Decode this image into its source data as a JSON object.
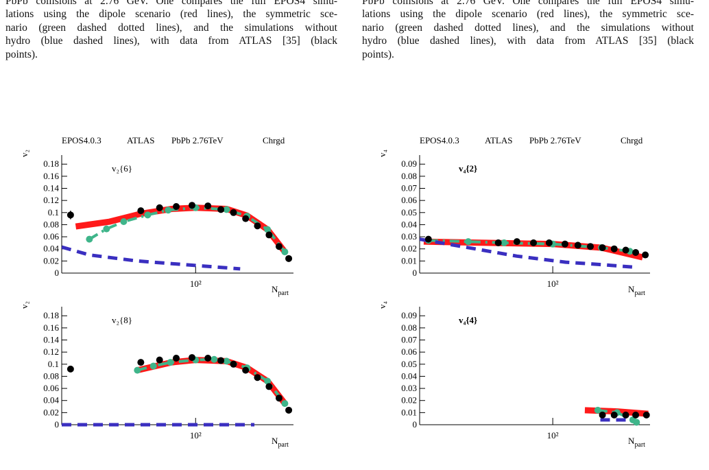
{
  "captions": [
    [
      "PbPb collisions at 2.76 GeV. One compares the full EPOS4 simu-",
      "lations using the dipole scenario (red lines), the symmetric sce-",
      "nario (green dashed dotted lines), and the simulations without",
      "hydro (blue dashed lines), with data from ATLAS [35] (black",
      "points)."
    ],
    [
      "PbPb collisions at 2.76 GeV. One compares the full EPOS4 simu-",
      "lations using the dipole scenario (red lines), the symmetric sce-",
      "nario (green dashed dotted lines), and the simulations without",
      "hydro (blue dashed lines), with data from ATLAS [35] (black",
      "points)."
    ]
  ],
  "chart_data": [
    {
      "type": "line",
      "header": [
        "EPOS4.0.3",
        "ATLAS",
        "PbPb 2.76TeV",
        "Chrgd"
      ],
      "y_label": "v₂",
      "x_label": "N",
      "x_label_sub": "part",
      "annotation": "v₂{6}",
      "annotation_bold": false,
      "log_x": true,
      "xlim": [
        15,
        400
      ],
      "xticks": [
        {
          "value": 100,
          "label": "10²"
        }
      ],
      "ylim": [
        0,
        0.195
      ],
      "yticks": [
        0,
        0.02,
        0.04,
        0.06,
        0.08,
        0.1,
        0.12,
        0.14,
        0.16,
        0.18
      ],
      "series": [
        {
          "type": "line",
          "color": "#ff1a1a",
          "width": 9,
          "dash": "solid",
          "x": [
            18.3,
            29.6,
            45.9,
            71.2,
            100,
            155,
            207,
            277,
            354
          ],
          "values": [
            0.077,
            0.085,
            0.098,
            0.106,
            0.108,
            0.106,
            0.095,
            0.072,
            0.035
          ]
        },
        {
          "type": "line",
          "color": "#3fb58a",
          "width": 4,
          "dash": "dashdot",
          "marker": true,
          "x": [
            22.2,
            28.3,
            36.1,
            50.7,
            67.8,
            100,
            155,
            207,
            277,
            354
          ],
          "values": [
            0.056,
            0.073,
            0.085,
            0.096,
            0.104,
            0.108,
            0.105,
            0.094,
            0.072,
            0.035
          ]
        },
        {
          "type": "line",
          "color": "#3a2fc0",
          "width": 5,
          "dash": "dashed",
          "x": [
            15,
            22.2,
            43.8,
            95.3,
            188
          ],
          "values": [
            0.043,
            0.03,
            0.02,
            0.013,
            0.007
          ]
        },
        {
          "type": "scatter",
          "color": "#000000",
          "x": [
            17,
            46,
            60,
            76,
            95,
            119,
            143,
            171,
            203,
            240,
            283,
            326,
            374
          ],
          "values": [
            0.096,
            0.103,
            0.108,
            0.11,
            0.112,
            0.111,
            0.105,
            0.1,
            0.09,
            0.078,
            0.063,
            0.044,
            0.024
          ],
          "errors": [
            0.007,
            0,
            0,
            0,
            0,
            0,
            0,
            0,
            0,
            0,
            0,
            0,
            0
          ]
        }
      ]
    },
    {
      "type": "line",
      "header": [
        "EPOS4.0.3",
        "ATLAS",
        "PbPb 2.76TeV",
        "Chrgd"
      ],
      "y_label": "v₄",
      "x_label": "N",
      "x_label_sub": "part",
      "annotation": "v₄{2}",
      "annotation_bold": true,
      "log_x": true,
      "xlim": [
        15,
        400
      ],
      "xticks": [
        {
          "value": 100,
          "label": "10²"
        }
      ],
      "ylim": [
        0,
        0.0975
      ],
      "yticks": [
        0,
        0.01,
        0.02,
        0.03,
        0.04,
        0.05,
        0.06,
        0.07,
        0.08,
        0.09
      ],
      "series": [
        {
          "type": "line",
          "color": "#ff1a1a",
          "width": 9,
          "dash": "solid",
          "x": [
            15.9,
            100,
            200,
            360
          ],
          "values": [
            0.026,
            0.024,
            0.021,
            0.013
          ]
        },
        {
          "type": "line",
          "color": "#3fb58a",
          "width": 4,
          "dash": "dashdot",
          "marker": true,
          "x": [
            17,
            30,
            50,
            100,
            200,
            300
          ],
          "values": [
            0.027,
            0.026,
            0.025,
            0.024,
            0.021,
            0.018
          ]
        },
        {
          "type": "line",
          "color": "#3a2fc0",
          "width": 5,
          "dash": "dashed",
          "x": [
            15,
            30,
            60,
            120,
            200,
            310
          ],
          "values": [
            0.028,
            0.021,
            0.014,
            0.009,
            0.007,
            0.005
          ]
        },
        {
          "type": "scatter",
          "color": "#000000",
          "x": [
            17,
            46,
            60,
            76,
            95,
            119,
            143,
            171,
            203,
            240,
            283,
            326,
            374
          ],
          "values": [
            0.028,
            0.025,
            0.026,
            0.025,
            0.025,
            0.024,
            0.023,
            0.022,
            0.021,
            0.02,
            0.019,
            0.017,
            0.015
          ]
        }
      ]
    },
    {
      "type": "line",
      "y_label": "v₂",
      "x_label": "N",
      "x_label_sub": "part",
      "annotation": "v₂{8}",
      "annotation_bold": false,
      "log_x": true,
      "xlim": [
        15,
        400
      ],
      "xticks": [
        {
          "value": 100,
          "label": "10²"
        }
      ],
      "ylim": [
        0,
        0.195
      ],
      "yticks": [
        0,
        0.02,
        0.04,
        0.06,
        0.08,
        0.1,
        0.12,
        0.14,
        0.16,
        0.18
      ],
      "series": [
        {
          "type": "line",
          "color": "#ff1a1a",
          "width": 9,
          "dash": "solid",
          "x": [
            43.8,
            71.2,
            100,
            155,
            207,
            277,
            354
          ],
          "values": [
            0.09,
            0.103,
            0.107,
            0.105,
            0.094,
            0.072,
            0.035
          ]
        },
        {
          "type": "line",
          "color": "#3fb58a",
          "width": 4,
          "dash": "dashdot",
          "marker": true,
          "x": [
            43.8,
            55,
            70,
            100,
            130,
            155,
            207,
            277,
            354
          ],
          "values": [
            0.09,
            0.097,
            0.103,
            0.107,
            0.108,
            0.105,
            0.094,
            0.072,
            0.035
          ]
        },
        {
          "type": "line",
          "color": "#3a2fc0",
          "width": 5,
          "dash": "dashed",
          "x": [
            15,
            60,
            120,
            230
          ],
          "values": [
            0,
            0,
            0,
            0
          ]
        },
        {
          "type": "scatter",
          "color": "#000000",
          "x": [
            17,
            46,
            60,
            76,
            95,
            119,
            143,
            171,
            203,
            240,
            283,
            326,
            374
          ],
          "values": [
            0.092,
            0.103,
            0.107,
            0.11,
            0.111,
            0.11,
            0.106,
            0.1,
            0.09,
            0.078,
            0.063,
            0.044,
            0.024
          ]
        }
      ]
    },
    {
      "type": "line",
      "y_label": "v₄",
      "x_label": "N",
      "x_label_sub": "part",
      "annotation": "v₄{4}",
      "annotation_bold": true,
      "log_x": true,
      "xlim": [
        15,
        400
      ],
      "xticks": [
        {
          "value": 100,
          "label": "10²"
        }
      ],
      "ylim": [
        0,
        0.0975
      ],
      "yticks": [
        0,
        0.01,
        0.02,
        0.03,
        0.04,
        0.05,
        0.06,
        0.07,
        0.08,
        0.09
      ],
      "series": [
        {
          "type": "line",
          "color": "#ff1a1a",
          "width": 9,
          "dash": "solid",
          "x": [
            158,
            250,
            390
          ],
          "values": [
            0.012,
            0.011,
            0.009
          ]
        },
        {
          "type": "line",
          "color": "#3fb58a",
          "width": 4,
          "dash": "dashdot",
          "marker": true,
          "x": [
            190,
            250,
            313,
            330
          ],
          "values": [
            0.012,
            0.01,
            0.004,
            0.002
          ]
        },
        {
          "type": "line",
          "color": "#3a2fc0",
          "width": 5,
          "dash": "dashed",
          "x": [
            197,
            305
          ],
          "values": [
            0.004,
            0.004
          ]
        },
        {
          "type": "scatter",
          "color": "#000000",
          "x": [
            203,
            240,
            283,
            326,
            380
          ],
          "values": [
            0.008,
            0.008,
            0.008,
            0.008,
            0.008
          ]
        }
      ]
    }
  ]
}
